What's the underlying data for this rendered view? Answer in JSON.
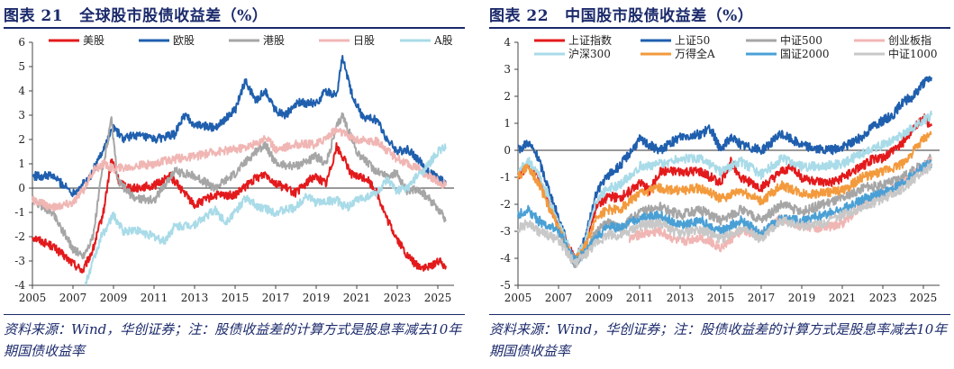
{
  "left": {
    "figure_label": "图表 21",
    "title": "全球股市股债收益差（%）",
    "source": "资料来源：Wind，华创证券；注：股债收益差的计算方式是股息率减去10年期国债收益率"
  },
  "right": {
    "figure_label": "图表 22",
    "title": "中国股市股债收益差（%）",
    "source": "资料来源：Wind，华创证券；注：股债收益差的计算方式是股息率减去10年期国债收益率"
  },
  "chart_data": [
    {
      "type": "line",
      "xlim": [
        2005,
        2025.8
      ],
      "ylim": [
        -4,
        6
      ],
      "xticks": [
        "2005",
        "2007",
        "2009",
        "2011",
        "2013",
        "2015",
        "2017",
        "2019",
        "2021",
        "2023",
        "2025"
      ],
      "yticks": [
        "-4",
        "-3",
        "-2",
        "-1",
        "0",
        "1",
        "2",
        "3",
        "4",
        "5",
        "6"
      ],
      "legend_position": "top",
      "grid": false,
      "series": [
        {
          "name": "美股",
          "color": "#e31a1c",
          "x": [
            2005,
            2006,
            2007,
            2007.5,
            2008,
            2008.5,
            2008.9,
            2009.3,
            2010,
            2011,
            2011.8,
            2012.5,
            2013,
            2014,
            2015,
            2016,
            2016.5,
            2017,
            2018,
            2018.9,
            2019.5,
            2020,
            2020.3,
            2020.8,
            2021.5,
            2022,
            2022.5,
            2023,
            2023.5,
            2024,
            2024.5,
            2025,
            2025.4
          ],
          "y": [
            -2.0,
            -2.4,
            -3.1,
            -3.4,
            -2.5,
            -1.0,
            1.2,
            0.2,
            0.0,
            0.1,
            0.5,
            -0.2,
            -0.7,
            -0.3,
            -0.3,
            0.4,
            0.6,
            0.2,
            -0.2,
            0.5,
            0.2,
            1.7,
            1.3,
            0.5,
            0.4,
            -0.2,
            -1.3,
            -2.1,
            -2.8,
            -3.2,
            -3.3,
            -3.0,
            -3.2
          ]
        },
        {
          "name": "欧股",
          "color": "#1f5fae",
          "x": [
            2005,
            2006,
            2007,
            2007.8,
            2008.5,
            2009,
            2009.5,
            2010,
            2011,
            2012,
            2012.5,
            2013,
            2014,
            2015,
            2015.5,
            2016,
            2016.5,
            2017,
            2017.5,
            2018,
            2019,
            2019.5,
            2020,
            2020.3,
            2020.7,
            2021.3,
            2022,
            2022.5,
            2023,
            2023.5,
            2024,
            2024.5,
            2025,
            2025.4
          ],
          "y": [
            0.5,
            0.5,
            -0.2,
            0.4,
            1.6,
            2.5,
            2.0,
            2.2,
            2.0,
            2.2,
            3.0,
            2.6,
            2.5,
            3.2,
            4.4,
            3.6,
            4.0,
            3.2,
            3.0,
            3.5,
            3.5,
            4.0,
            3.8,
            5.4,
            4.0,
            2.9,
            2.8,
            2.0,
            1.5,
            1.6,
            1.2,
            0.7,
            0.4,
            0.2
          ]
        },
        {
          "name": "港股",
          "color": "#a6a6a6",
          "x": [
            2005,
            2006,
            2007,
            2007.5,
            2008,
            2008.4,
            2008.9,
            2009.2,
            2010,
            2011,
            2012,
            2013,
            2014,
            2015,
            2016,
            2016.5,
            2017,
            2018,
            2019,
            2019.5,
            2020,
            2020.3,
            2021,
            2021.8,
            2022.5,
            2023,
            2023.5,
            2024,
            2024.5,
            2025,
            2025.4
          ],
          "y": [
            -0.5,
            -1.0,
            -2.5,
            -2.8,
            -2.0,
            0.5,
            2.8,
            0.3,
            -0.4,
            -0.5,
            0.7,
            0.5,
            0.0,
            0.6,
            1.5,
            1.8,
            1.0,
            0.9,
            1.3,
            1.0,
            2.5,
            3.0,
            1.5,
            0.8,
            0.5,
            0.6,
            -0.2,
            0.0,
            -0.4,
            -0.8,
            -1.3
          ]
        },
        {
          "name": "日股",
          "color": "#f0b6b4",
          "x": [
            2005,
            2006,
            2007,
            2007.5,
            2008,
            2008.5,
            2009,
            2010,
            2011,
            2012,
            2013,
            2014,
            2015,
            2016,
            2016.5,
            2017,
            2018,
            2019,
            2020,
            2020.5,
            2021,
            2022,
            2023,
            2024,
            2024.5,
            2025,
            2025.4
          ],
          "y": [
            -0.5,
            -0.8,
            -0.6,
            -0.1,
            0.7,
            1.0,
            0.8,
            0.9,
            1.0,
            1.2,
            1.3,
            1.5,
            1.6,
            1.8,
            2.1,
            1.6,
            1.8,
            1.8,
            2.4,
            2.2,
            2.0,
            1.9,
            1.2,
            0.8,
            0.5,
            0.3,
            0.1
          ]
        },
        {
          "name": "A股",
          "color": "#a9dbe8",
          "x": [
            2007.6,
            2008,
            2008.4,
            2009,
            2009.5,
            2010,
            2011,
            2011.5,
            2012,
            2013,
            2014,
            2014.5,
            2015,
            2015.5,
            2016,
            2017,
            2018,
            2018.5,
            2019,
            2020,
            2020.5,
            2021,
            2022,
            2022.5,
            2023,
            2023.5,
            2024,
            2024.5,
            2025,
            2025.4
          ],
          "y": [
            -4.0,
            -3.0,
            -2.0,
            -1.1,
            -1.8,
            -1.7,
            -2.0,
            -2.2,
            -1.6,
            -1.5,
            -0.9,
            -1.4,
            -1.0,
            -0.4,
            -0.7,
            -1.0,
            -0.8,
            -0.3,
            -0.6,
            -0.5,
            -0.8,
            -0.5,
            -0.2,
            0.3,
            -0.1,
            0.0,
            0.5,
            0.9,
            1.5,
            1.7
          ]
        }
      ]
    },
    {
      "type": "line",
      "xlim": [
        2005,
        2025.8
      ],
      "ylim": [
        -5,
        4
      ],
      "xticks": [
        "2005",
        "2007",
        "2009",
        "2011",
        "2013",
        "2015",
        "2017",
        "2019",
        "2021",
        "2023",
        "2025"
      ],
      "yticks": [
        "-5",
        "-4",
        "-3",
        "-2",
        "-1",
        "0",
        "1",
        "2",
        "3",
        "4"
      ],
      "legend_position": "top",
      "grid": false,
      "series": [
        {
          "name": "上证指数",
          "color": "#e31a1c",
          "x": [
            2005,
            2005.5,
            2006,
            2007,
            2007.8,
            2008.3,
            2008.9,
            2009.5,
            2010,
            2011,
            2011.5,
            2012,
            2013,
            2014,
            2015,
            2015.5,
            2016,
            2017,
            2018,
            2018.5,
            2019,
            2020,
            2020.5,
            2021,
            2022,
            2022.5,
            2023,
            2023.5,
            2024,
            2024.5,
            2025,
            2025.4
          ],
          "y": [
            -1.0,
            -0.5,
            -1.0,
            -2.8,
            -4.0,
            -3.5,
            -2.0,
            -1.7,
            -1.8,
            -1.2,
            -1.5,
            -0.8,
            -0.8,
            -0.8,
            -1.2,
            -0.4,
            -1.0,
            -1.4,
            -0.8,
            -0.6,
            -1.0,
            -1.2,
            -1.2,
            -1.0,
            -0.6,
            -0.3,
            -0.3,
            0.0,
            0.3,
            0.8,
            1.2,
            0.9
          ]
        },
        {
          "name": "上证50",
          "color": "#1f5fae",
          "x": [
            2005,
            2005.5,
            2006,
            2007,
            2007.8,
            2008.3,
            2008.9,
            2009.5,
            2010,
            2011,
            2011.5,
            2012,
            2013,
            2014,
            2014.5,
            2015,
            2015.5,
            2016,
            2017,
            2018,
            2019,
            2020,
            2020.5,
            2021,
            2022,
            2022.5,
            2023,
            2023.5,
            2024,
            2024.5,
            2025,
            2025.4
          ],
          "y": [
            0.0,
            0.3,
            -0.3,
            -2.5,
            -4.2,
            -3.3,
            -1.5,
            -0.9,
            -0.6,
            0.4,
            0.2,
            0.0,
            0.5,
            0.6,
            0.8,
            0.0,
            0.5,
            0.2,
            0.0,
            0.6,
            0.2,
            0.0,
            0.0,
            0.1,
            0.5,
            0.9,
            1.1,
            1.3,
            1.8,
            2.0,
            2.5,
            2.7
          ]
        },
        {
          "name": "中证500",
          "color": "#a6a6a6",
          "x": [
            2007,
            2007.8,
            2008.3,
            2008.9,
            2009.5,
            2010,
            2011,
            2012,
            2013,
            2014,
            2015,
            2016,
            2017,
            2018,
            2019,
            2020,
            2021,
            2022,
            2023,
            2024,
            2025,
            2025.4
          ],
          "y": [
            -3.0,
            -4.2,
            -3.8,
            -3.0,
            -2.6,
            -2.9,
            -2.3,
            -2.1,
            -2.4,
            -2.2,
            -2.6,
            -2.2,
            -2.6,
            -2.0,
            -2.3,
            -2.0,
            -1.8,
            -1.4,
            -1.3,
            -1.0,
            -0.5,
            -0.3
          ]
        },
        {
          "name": "创业板指",
          "color": "#f0b6b4",
          "x": [
            2010.5,
            2011,
            2012,
            2013,
            2014,
            2015,
            2016,
            2017,
            2018,
            2019,
            2020,
            2021,
            2022,
            2023,
            2024,
            2025,
            2025.4
          ],
          "y": [
            -3.3,
            -3.1,
            -3.0,
            -3.4,
            -3.2,
            -3.6,
            -3.0,
            -3.1,
            -2.5,
            -2.8,
            -2.9,
            -2.7,
            -2.0,
            -1.6,
            -1.2,
            -0.6,
            -0.4
          ]
        },
        {
          "name": "沪深300",
          "color": "#a9dbe8",
          "x": [
            2005,
            2005.5,
            2006,
            2007,
            2007.8,
            2008.3,
            2008.9,
            2009.5,
            2010,
            2011,
            2012,
            2013,
            2014,
            2015,
            2016,
            2017,
            2018,
            2019,
            2020,
            2021,
            2022,
            2023,
            2024,
            2025,
            2025.4
          ],
          "y": [
            -0.8,
            -0.4,
            -0.8,
            -2.7,
            -4.1,
            -3.4,
            -1.8,
            -1.4,
            -1.3,
            -0.6,
            -0.5,
            -0.3,
            -0.3,
            -0.8,
            -0.4,
            -0.9,
            -0.3,
            -0.6,
            -0.6,
            -0.5,
            -0.1,
            0.2,
            0.6,
            1.1,
            1.3
          ]
        },
        {
          "name": "万得全A",
          "color": "#f39a3d",
          "x": [
            2005,
            2005.5,
            2006,
            2007,
            2007.8,
            2008.3,
            2008.9,
            2009.5,
            2010,
            2011,
            2012,
            2013,
            2014,
            2015,
            2016,
            2017,
            2018,
            2019,
            2020,
            2021,
            2022,
            2023,
            2024,
            2025,
            2025.4
          ],
          "y": [
            -1.0,
            -0.6,
            -1.2,
            -2.9,
            -4.1,
            -3.6,
            -2.4,
            -2.2,
            -2.2,
            -1.6,
            -1.4,
            -1.5,
            -1.4,
            -1.8,
            -1.5,
            -1.9,
            -1.3,
            -1.6,
            -1.6,
            -1.5,
            -1.0,
            -0.8,
            -0.5,
            0.4,
            0.6
          ]
        },
        {
          "name": "国证2000",
          "color": "#4aa0d5",
          "x": [
            2005,
            2005.5,
            2006,
            2007,
            2007.8,
            2008.3,
            2008.9,
            2009.5,
            2010,
            2011,
            2012,
            2013,
            2014,
            2015,
            2016,
            2017,
            2018,
            2019,
            2020,
            2021,
            2022,
            2023,
            2024,
            2025,
            2025.4
          ],
          "y": [
            -2.4,
            -2.2,
            -2.6,
            -3.0,
            -4.1,
            -3.8,
            -3.2,
            -2.8,
            -2.9,
            -2.5,
            -2.4,
            -2.8,
            -2.6,
            -3.0,
            -2.6,
            -3.1,
            -2.5,
            -2.6,
            -2.4,
            -2.2,
            -1.8,
            -1.6,
            -1.2,
            -0.6,
            -0.5
          ]
        },
        {
          "name": "中证1000",
          "color": "#c8c8c8",
          "x": [
            2005,
            2005.5,
            2006,
            2007,
            2007.8,
            2008.3,
            2008.9,
            2009.5,
            2010,
            2011,
            2012,
            2013,
            2014,
            2015,
            2016,
            2017,
            2018,
            2019,
            2020,
            2021,
            2022,
            2023,
            2024,
            2025,
            2025.4
          ],
          "y": [
            -2.9,
            -2.7,
            -3.0,
            -3.3,
            -4.2,
            -3.9,
            -3.4,
            -3.1,
            -3.2,
            -2.8,
            -2.7,
            -3.1,
            -2.9,
            -3.3,
            -2.9,
            -3.3,
            -2.6,
            -2.8,
            -2.7,
            -2.4,
            -2.1,
            -1.8,
            -1.4,
            -0.8,
            -0.6
          ]
        }
      ]
    }
  ]
}
